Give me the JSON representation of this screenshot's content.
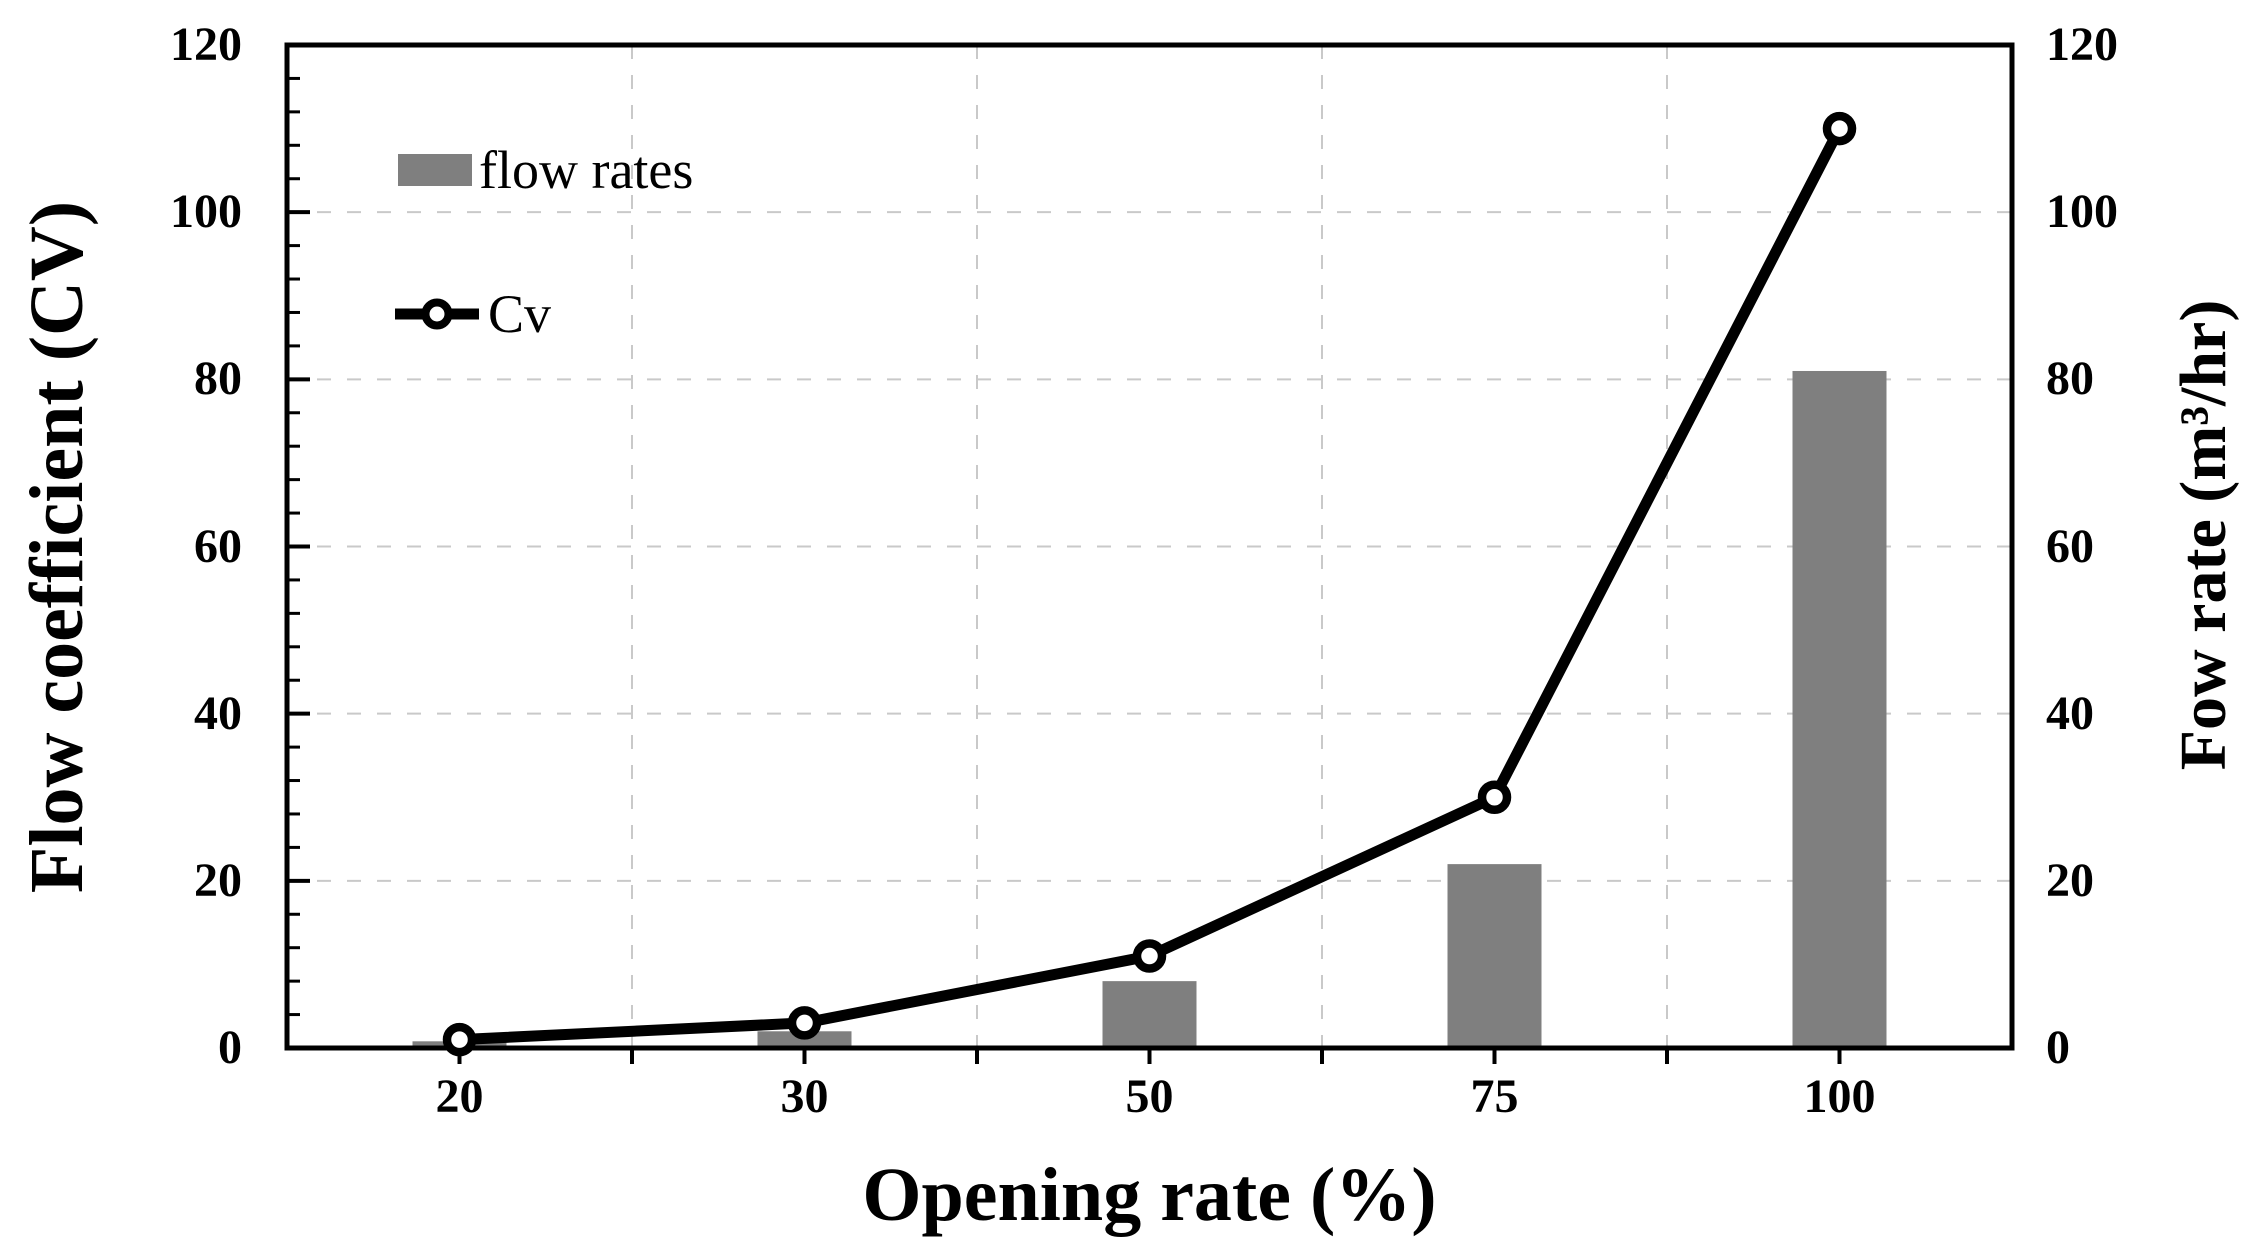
{
  "chart_data": {
    "type": "combo",
    "categories": [
      "20",
      "30",
      "50",
      "75",
      "100"
    ],
    "series": [
      {
        "name": "flow rates",
        "type": "bar",
        "axis": "right",
        "color": "#7f7f7f",
        "values": [
          0.8,
          2,
          8,
          22,
          81
        ]
      },
      {
        "name": "Cv",
        "type": "line",
        "axis": "left",
        "color": "#000000",
        "marker": "open-circle",
        "marker_fill": "#ffffff",
        "values": [
          1,
          3,
          11,
          30,
          110
        ]
      }
    ],
    "xlabel": "Opening rate (%)",
    "ylabel_left": "Flow coefficient (CV)",
    "ylabel_right": "Fow rate (m³/hr)",
    "ylim": [
      0,
      120
    ],
    "yticks": [
      0,
      20,
      40,
      60,
      80,
      100,
      120
    ],
    "minor_tick_step": 4,
    "grid": true,
    "grid_color": "#c9c9c9",
    "frame_color": "#000000",
    "legend_position": "upper-left-inside"
  }
}
